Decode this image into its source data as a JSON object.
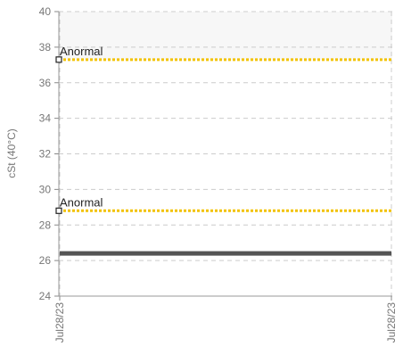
{
  "chart_data": {
    "type": "line",
    "title": "",
    "xlabel": "",
    "ylabel": "cSt (40°C)",
    "ylim": [
      24,
      40
    ],
    "yticks": [
      24,
      26,
      28,
      30,
      32,
      34,
      36,
      38,
      40
    ],
    "x_ticks": [
      "Jul28/23",
      "Jul28/23"
    ],
    "grid": true,
    "legend": "none",
    "bands": [
      {
        "from": 24,
        "to": 28.8,
        "color": "#ffffff"
      },
      {
        "from": 28.8,
        "to": 37.3,
        "color": "#ffffff"
      },
      {
        "from": 37.3,
        "to": 40,
        "color": "#f7f7f7"
      }
    ],
    "thresholds": [
      {
        "label": "Anormal",
        "value": 37.3,
        "color": "#f2c200"
      },
      {
        "label": "Anormal",
        "value": 28.8,
        "color": "#f2c200"
      }
    ],
    "series": [
      {
        "values": [
          26.4,
          26.4
        ],
        "color": "#555555"
      }
    ]
  }
}
